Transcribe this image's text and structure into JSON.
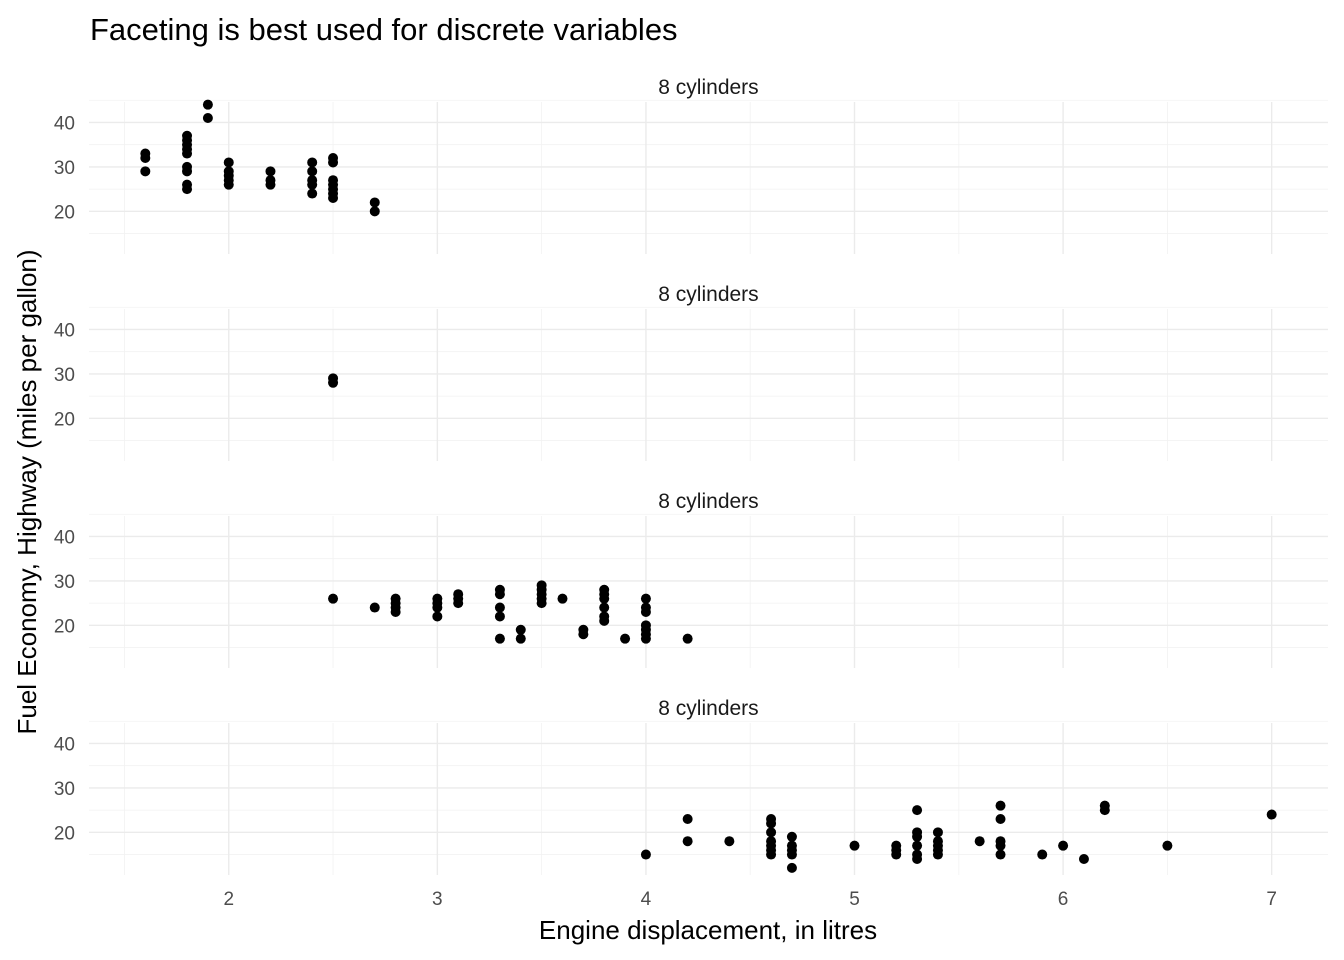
{
  "chart_data": {
    "type": "scatter",
    "title": "Faceting is best used for discrete variables",
    "xlabel": "Engine displacement, in litres",
    "ylabel": "Fuel Economy, Highway (miles per gallon)",
    "xlim": [
      1.33,
      7.27
    ],
    "ylim": [
      10.4,
      44.6
    ],
    "x_ticks": [
      2,
      3,
      4,
      5,
      6,
      7
    ],
    "y_ticks": [
      20,
      30,
      40
    ],
    "grid": true,
    "facets": [
      {
        "label": "8 cylinders",
        "points": [
          [
            1.6,
            33
          ],
          [
            1.6,
            32
          ],
          [
            1.6,
            29
          ],
          [
            1.8,
            37
          ],
          [
            1.8,
            36
          ],
          [
            1.8,
            35
          ],
          [
            1.8,
            34
          ],
          [
            1.8,
            33
          ],
          [
            1.8,
            30
          ],
          [
            1.8,
            29
          ],
          [
            1.8,
            26
          ],
          [
            1.8,
            25
          ],
          [
            1.9,
            44
          ],
          [
            1.9,
            41
          ],
          [
            2.0,
            31
          ],
          [
            2.0,
            29
          ],
          [
            2.0,
            28
          ],
          [
            2.0,
            27
          ],
          [
            2.0,
            26
          ],
          [
            2.2,
            29
          ],
          [
            2.2,
            27
          ],
          [
            2.2,
            26
          ],
          [
            2.4,
            31
          ],
          [
            2.4,
            29
          ],
          [
            2.4,
            27
          ],
          [
            2.4,
            26
          ],
          [
            2.4,
            24
          ],
          [
            2.5,
            32
          ],
          [
            2.5,
            31
          ],
          [
            2.5,
            27
          ],
          [
            2.5,
            26
          ],
          [
            2.5,
            25
          ],
          [
            2.5,
            24
          ],
          [
            2.5,
            23
          ],
          [
            2.7,
            22
          ],
          [
            2.7,
            20
          ]
        ]
      },
      {
        "label": "8 cylinders",
        "points": [
          [
            2.5,
            29
          ],
          [
            2.5,
            28
          ]
        ]
      },
      {
        "label": "8 cylinders",
        "points": [
          [
            2.5,
            26
          ],
          [
            2.7,
            24
          ],
          [
            2.8,
            26
          ],
          [
            2.8,
            25
          ],
          [
            2.8,
            24
          ],
          [
            2.8,
            23
          ],
          [
            3.0,
            26
          ],
          [
            3.0,
            25
          ],
          [
            3.0,
            24
          ],
          [
            3.0,
            22
          ],
          [
            3.1,
            27
          ],
          [
            3.1,
            26
          ],
          [
            3.1,
            25
          ],
          [
            3.3,
            28
          ],
          [
            3.3,
            27
          ],
          [
            3.3,
            24
          ],
          [
            3.3,
            22
          ],
          [
            3.3,
            17
          ],
          [
            3.4,
            19
          ],
          [
            3.4,
            17
          ],
          [
            3.5,
            29
          ],
          [
            3.5,
            28
          ],
          [
            3.5,
            27
          ],
          [
            3.5,
            26
          ],
          [
            3.5,
            25
          ],
          [
            3.6,
            26
          ],
          [
            3.7,
            19
          ],
          [
            3.7,
            18
          ],
          [
            3.8,
            28
          ],
          [
            3.8,
            27
          ],
          [
            3.8,
            26
          ],
          [
            3.8,
            24
          ],
          [
            3.8,
            22
          ],
          [
            3.8,
            21
          ],
          [
            3.9,
            17
          ],
          [
            4.0,
            26
          ],
          [
            4.0,
            24
          ],
          [
            4.0,
            23
          ],
          [
            4.0,
            20
          ],
          [
            4.0,
            19
          ],
          [
            4.0,
            18
          ],
          [
            4.0,
            17
          ],
          [
            4.2,
            17
          ]
        ]
      },
      {
        "label": "8 cylinders",
        "points": [
          [
            4.0,
            15
          ],
          [
            4.2,
            23
          ],
          [
            4.2,
            18
          ],
          [
            4.4,
            18
          ],
          [
            4.6,
            23
          ],
          [
            4.6,
            22
          ],
          [
            4.6,
            20
          ],
          [
            4.6,
            18
          ],
          [
            4.6,
            17
          ],
          [
            4.6,
            16
          ],
          [
            4.6,
            15
          ],
          [
            4.7,
            19
          ],
          [
            4.7,
            17
          ],
          [
            4.7,
            16
          ],
          [
            4.7,
            15
          ],
          [
            4.7,
            12
          ],
          [
            5.0,
            17
          ],
          [
            5.2,
            17
          ],
          [
            5.2,
            16
          ],
          [
            5.2,
            15
          ],
          [
            5.3,
            25
          ],
          [
            5.3,
            20
          ],
          [
            5.3,
            19
          ],
          [
            5.3,
            17
          ],
          [
            5.3,
            15
          ],
          [
            5.3,
            14
          ],
          [
            5.4,
            20
          ],
          [
            5.4,
            18
          ],
          [
            5.4,
            17
          ],
          [
            5.4,
            16
          ],
          [
            5.4,
            15
          ],
          [
            5.6,
            18
          ],
          [
            5.7,
            26
          ],
          [
            5.7,
            23
          ],
          [
            5.7,
            18
          ],
          [
            5.7,
            17
          ],
          [
            5.7,
            15
          ],
          [
            5.9,
            15
          ],
          [
            6.0,
            17
          ],
          [
            6.1,
            14
          ],
          [
            6.2,
            26
          ],
          [
            6.2,
            25
          ],
          [
            6.5,
            17
          ],
          [
            7.0,
            24
          ]
        ]
      }
    ]
  }
}
